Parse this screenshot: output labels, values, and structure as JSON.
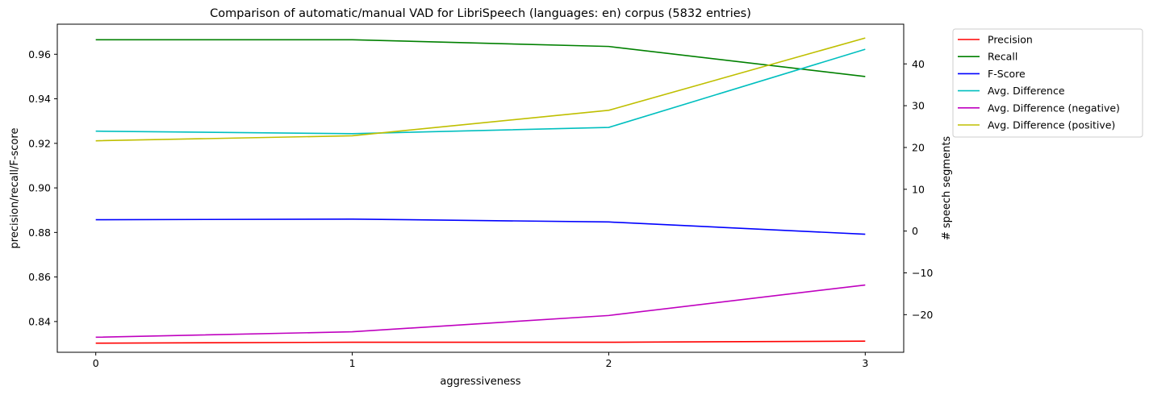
{
  "chart_data": {
    "type": "line",
    "title": "Comparison of automatic/manual VAD for LibriSpeech (languages: en) corpus (5832 entries)",
    "xlabel": "aggressiveness",
    "ylabel_left": "precision/recall/F-score",
    "ylabel_right": "# speech segments",
    "x": [
      0,
      1,
      2,
      3
    ],
    "x_ticks": [
      "0",
      "1",
      "2",
      "3"
    ],
    "ylim_left": [
      0.8262,
      0.9735
    ],
    "ylim_right": [
      -29.0,
      49.5
    ],
    "yticks_left": [
      "0.84",
      "0.86",
      "0.88",
      "0.90",
      "0.92",
      "0.94",
      "0.96"
    ],
    "yticks_left_values": [
      0.84,
      0.86,
      0.88,
      0.9,
      0.92,
      0.94,
      0.96
    ],
    "yticks_right": [
      "−20",
      "−10",
      "0",
      "10",
      "20",
      "30",
      "40"
    ],
    "yticks_right_values": [
      -20,
      -10,
      0,
      10,
      20,
      30,
      40
    ],
    "legend_placement": "outside-top-right",
    "grid": false,
    "series": [
      {
        "name": "Precision",
        "axis": "left",
        "color": "#ff0000",
        "values": [
          0.8303,
          0.8307,
          0.8307,
          0.8312
        ]
      },
      {
        "name": "Recall",
        "axis": "left",
        "color": "#008000",
        "values": [
          0.9665,
          0.9665,
          0.9635,
          0.95
        ]
      },
      {
        "name": "F-Score",
        "axis": "left",
        "color": "#0000ff",
        "values": [
          0.8857,
          0.886,
          0.8847,
          0.8792
        ]
      },
      {
        "name": "Avg. Difference",
        "axis": "right",
        "color": "#00bfbf",
        "values": [
          23.9,
          23.3,
          24.8,
          43.5
        ]
      },
      {
        "name": "Avg. Difference (negative)",
        "axis": "right",
        "color": "#bf00bf",
        "values": [
          -25.4,
          -24.1,
          -20.2,
          -12.9
        ]
      },
      {
        "name": "Avg. Difference (positive)",
        "axis": "right",
        "color": "#bfbf00",
        "values": [
          21.6,
          22.8,
          28.9,
          46.2
        ]
      }
    ]
  }
}
